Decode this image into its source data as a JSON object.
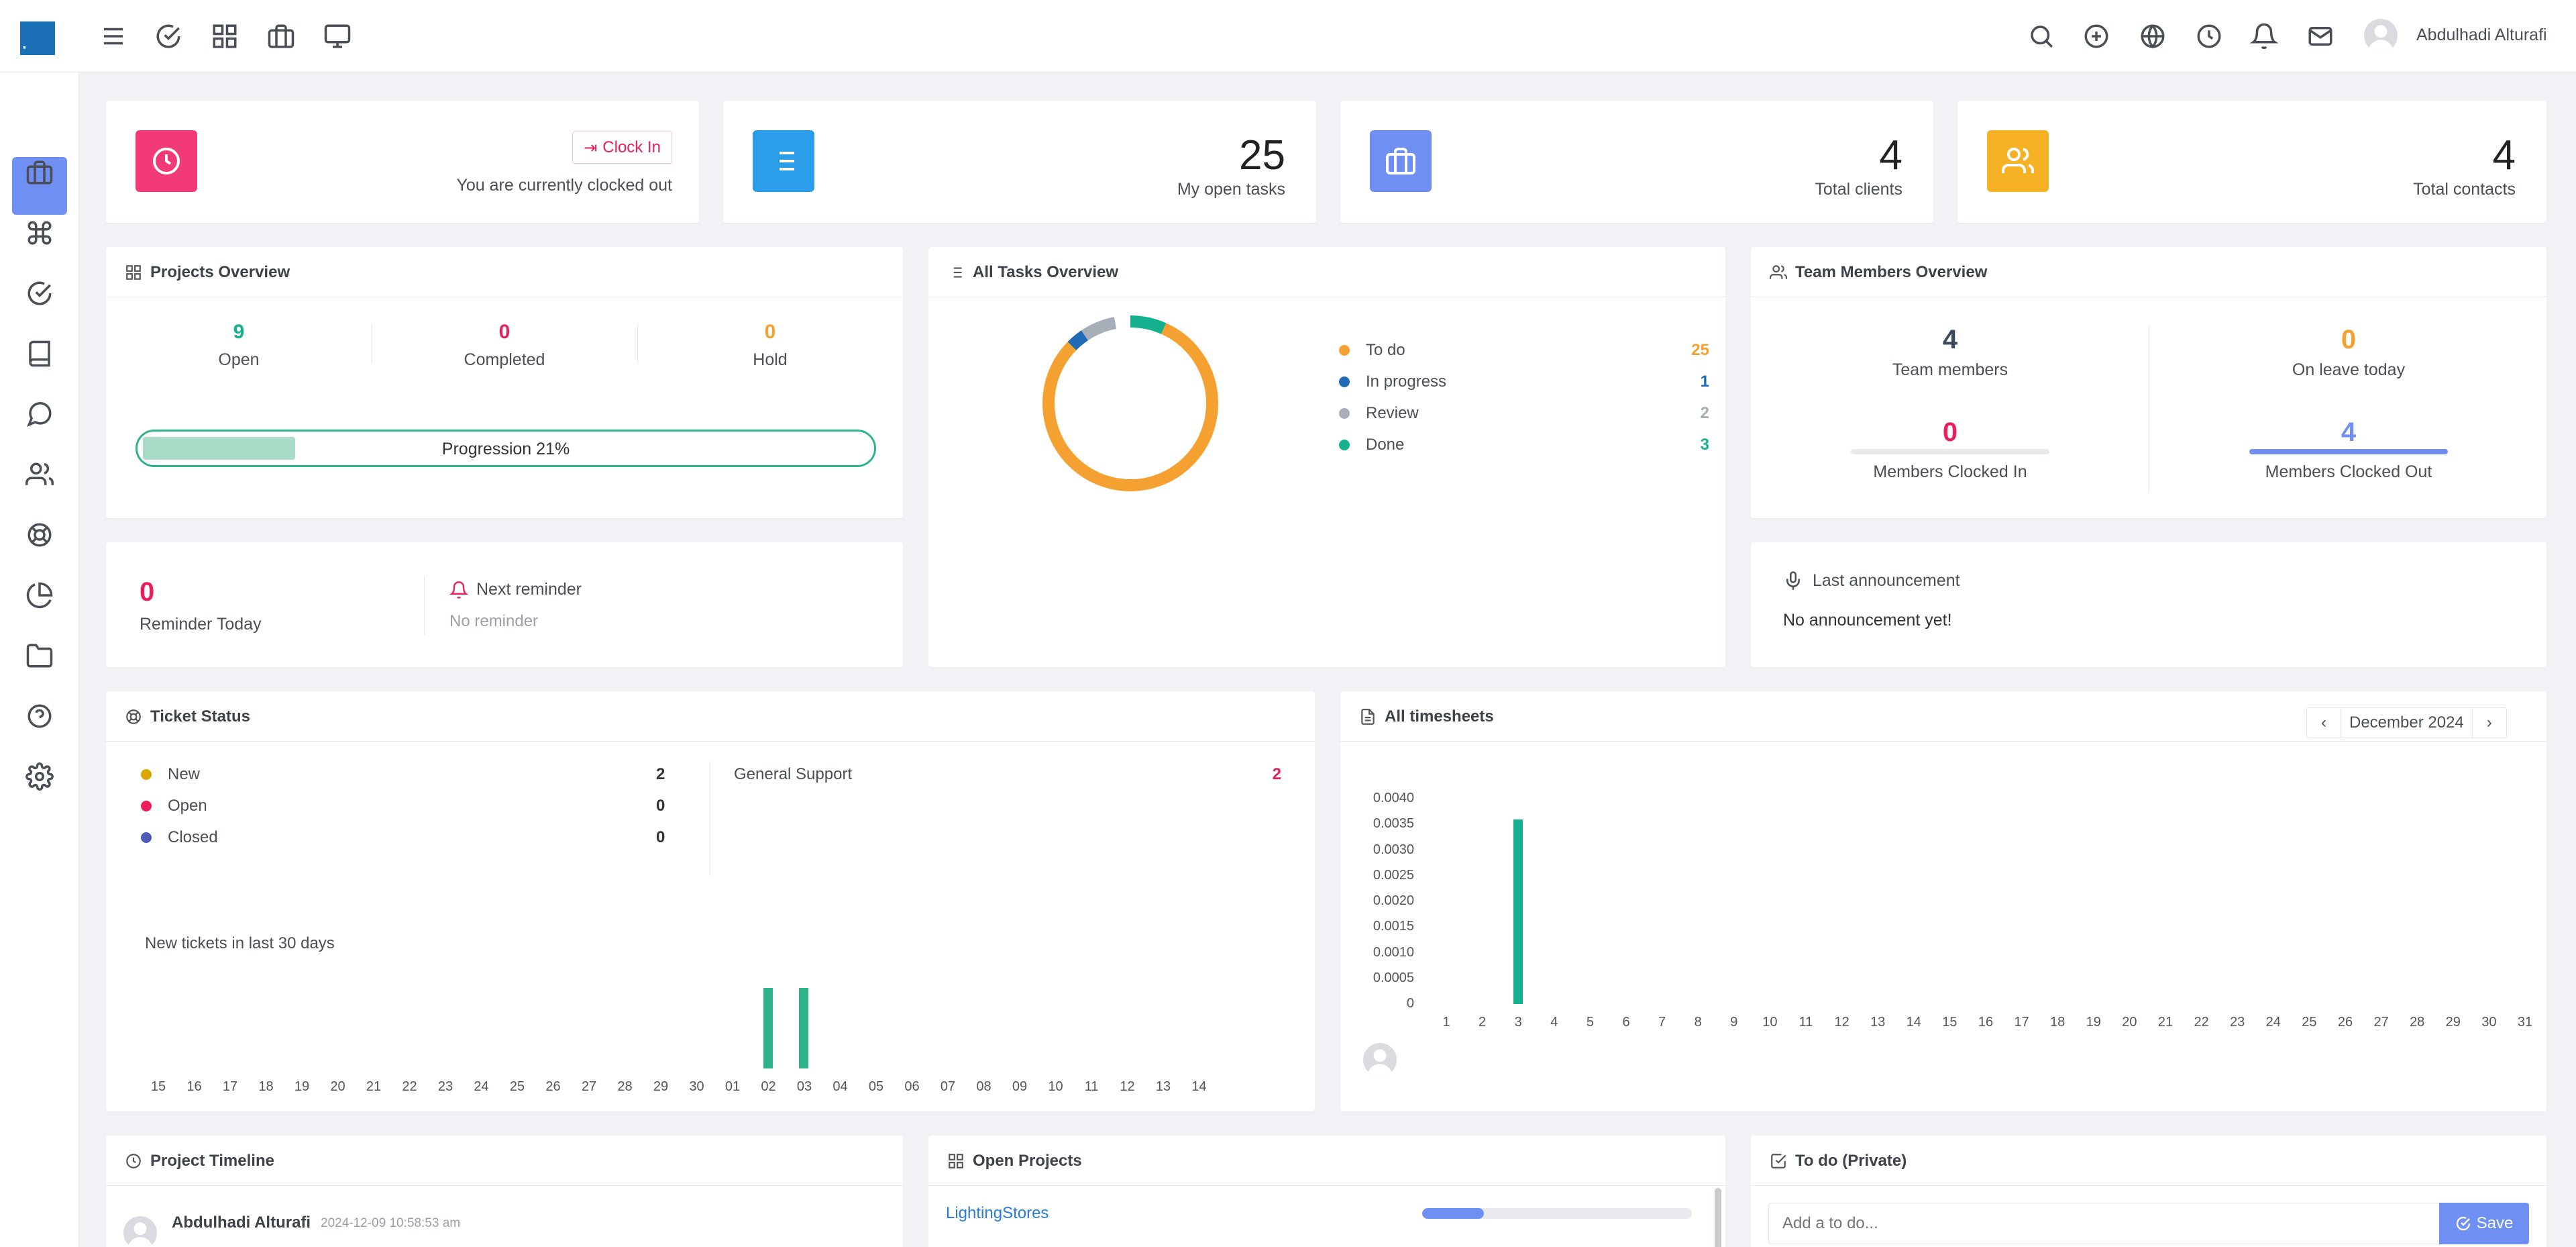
{
  "header": {
    "user_name": "Abdulhadi Alturafi",
    "left_icons": [
      "menu-icon",
      "check-circle-icon",
      "grid-icon",
      "briefcase-icon",
      "monitor-icon"
    ],
    "right_icons": [
      "search-icon",
      "plus-circle-icon",
      "globe-icon",
      "clock-icon",
      "bell-icon",
      "mail-icon"
    ]
  },
  "sidebar": {
    "items": [
      "dashboard",
      "clients",
      "projects",
      "tasks",
      "notes",
      "messages",
      "team",
      "tickets",
      "reports",
      "files",
      "help",
      "settings"
    ]
  },
  "stats": {
    "clock": {
      "button_label": "Clock In",
      "status_text": "You are currently clocked out"
    },
    "tasks": {
      "value": "25",
      "label": "My open tasks"
    },
    "clients": {
      "value": "4",
      "label": "Total clients"
    },
    "contacts": {
      "value": "4",
      "label": "Total contacts"
    }
  },
  "projects_overview": {
    "title": "Projects Overview",
    "open_value": "9",
    "open_label": "Open",
    "completed_value": "0",
    "completed_label": "Completed",
    "hold_value": "0",
    "hold_label": "Hold",
    "progress_label": "Progression 21%",
    "progress_fraction": 0.21
  },
  "reminders": {
    "count": "0",
    "count_label": "Reminder Today",
    "next_label": "Next reminder",
    "next_value": "No reminder"
  },
  "tasks_overview": {
    "title": "All Tasks Overview",
    "items": [
      {
        "label": "To do",
        "value": "25",
        "color": "#f5a131"
      },
      {
        "label": "In progress",
        "value": "1",
        "color": "#1f6bb6"
      },
      {
        "label": "Review",
        "value": "2",
        "color": "#a8aeb7"
      },
      {
        "label": "Done",
        "value": "3",
        "color": "#15b08e"
      }
    ]
  },
  "team_overview": {
    "title": "Team Members Overview",
    "members_value": "4",
    "members_label": "Team members",
    "leave_value": "0",
    "leave_label": "On leave today",
    "clocked_in_value": "0",
    "clocked_in_label": "Members Clocked In",
    "clocked_out_value": "4",
    "clocked_out_label": "Members Clocked Out"
  },
  "announcement": {
    "label": "Last announcement",
    "text": "No announcement yet!"
  },
  "ticket_status": {
    "title": "Ticket Status",
    "statuses": [
      {
        "label": "New",
        "value": "2",
        "color": "#d9a800"
      },
      {
        "label": "Open",
        "value": "0",
        "color": "#e91e5a"
      },
      {
        "label": "Closed",
        "value": "0",
        "color": "#4d5bb8"
      }
    ],
    "type_label": "General Support",
    "type_value": "2",
    "chart_caption": "New tickets in last 30 days"
  },
  "timesheets": {
    "title": "All timesheets",
    "month": "December 2024"
  },
  "chart_data": [
    {
      "type": "bar",
      "title": "New tickets in last 30 days",
      "categories": [
        "15",
        "16",
        "17",
        "18",
        "19",
        "20",
        "21",
        "22",
        "23",
        "24",
        "25",
        "26",
        "27",
        "28",
        "29",
        "30",
        "01",
        "02",
        "03",
        "04",
        "05",
        "06",
        "07",
        "08",
        "09",
        "10",
        "11",
        "12",
        "13",
        "14"
      ],
      "values": [
        0,
        0,
        0,
        0,
        0,
        0,
        0,
        0,
        0,
        0,
        0,
        0,
        0,
        0,
        0,
        0,
        0,
        1,
        1,
        0,
        0,
        0,
        0,
        0,
        0,
        0,
        0,
        0,
        0,
        0
      ],
      "color": "#2fb38a"
    },
    {
      "type": "bar",
      "title": "",
      "categories": [
        "1",
        "2",
        "3",
        "4",
        "5",
        "6",
        "7",
        "8",
        "9",
        "10",
        "11",
        "12",
        "13",
        "14",
        "15",
        "16",
        "17",
        "18",
        "19",
        "20",
        "21",
        "22",
        "23",
        "24",
        "25",
        "26",
        "27",
        "28",
        "29",
        "30",
        "31"
      ],
      "values": [
        0,
        0,
        0.0036,
        0,
        0,
        0,
        0,
        0,
        0,
        0,
        0,
        0,
        0,
        0,
        0,
        0,
        0,
        0,
        0,
        0,
        0,
        0,
        0,
        0,
        0,
        0,
        0,
        0,
        0,
        0,
        0
      ],
      "yticks": [
        "0",
        "0.0005",
        "0.0010",
        "0.0015",
        "0.0020",
        "0.0025",
        "0.0030",
        "0.0035",
        "0.0040"
      ],
      "ylim": [
        0,
        0.004
      ],
      "color": "#15b08e"
    }
  ],
  "project_timeline": {
    "title": "Project Timeline",
    "user": "Abdulhadi Alturafi",
    "timestamp": "2024-12-09 10:58:53 am"
  },
  "open_projects": {
    "title": "Open Projects",
    "items": [
      {
        "name": "LightingStores",
        "progress": 0.23
      }
    ]
  },
  "todo": {
    "title": "To do (Private)",
    "placeholder": "Add a to do...",
    "save_label": "Save"
  }
}
